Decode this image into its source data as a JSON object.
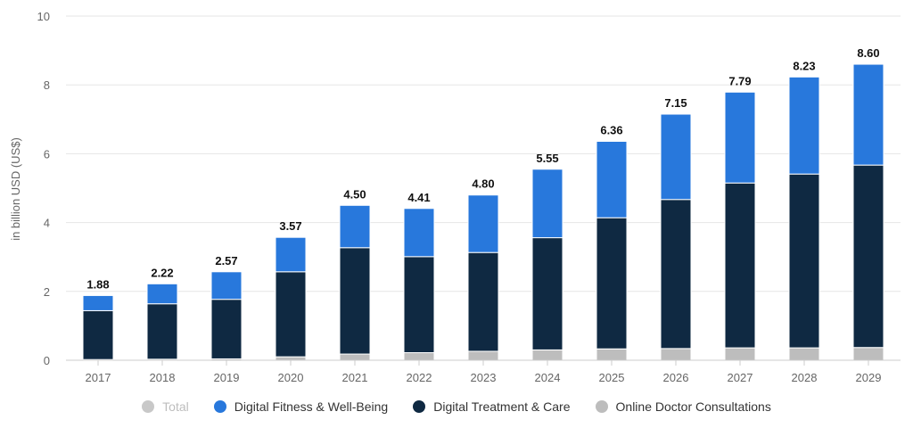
{
  "chart_data": {
    "type": "bar",
    "stacked": true,
    "categories": [
      "2017",
      "2018",
      "2019",
      "2020",
      "2021",
      "2022",
      "2023",
      "2024",
      "2025",
      "2026",
      "2027",
      "2028",
      "2029"
    ],
    "series": [
      {
        "name": "Online Doctor Consultations",
        "color": "#bdbdbd",
        "values": [
          0.02,
          0.03,
          0.04,
          0.1,
          0.18,
          0.22,
          0.26,
          0.3,
          0.33,
          0.34,
          0.36,
          0.36,
          0.37
        ]
      },
      {
        "name": "Digital Treatment & Care",
        "color": "#0f2942",
        "values": [
          1.42,
          1.61,
          1.73,
          2.47,
          3.09,
          2.79,
          2.87,
          3.26,
          3.81,
          4.33,
          4.79,
          5.05,
          5.3
        ]
      },
      {
        "name": "Digital Fitness & Well-Being",
        "color": "#2878dc",
        "values": [
          0.44,
          0.58,
          0.8,
          1.0,
          1.23,
          1.4,
          1.67,
          1.99,
          2.22,
          2.48,
          2.64,
          2.82,
          2.93
        ]
      }
    ],
    "totals": [
      "1.88",
      "2.22",
      "2.57",
      "3.57",
      "4.50",
      "4.41",
      "4.80",
      "5.55",
      "6.36",
      "7.15",
      "7.79",
      "8.23",
      "8.60"
    ],
    "ylabel": "in billion USD (US$)",
    "ylim": [
      0,
      10
    ],
    "yticks": [
      "0",
      "2",
      "4",
      "6",
      "8",
      "10"
    ],
    "grid": true,
    "legend_position": "bottom"
  },
  "legend": [
    {
      "label": "Total",
      "color": "#c8c8c8",
      "inactive": true
    },
    {
      "label": "Digital Fitness & Well-Being",
      "color": "#2878dc",
      "inactive": false
    },
    {
      "label": "Digital Treatment & Care",
      "color": "#0f2942",
      "inactive": false
    },
    {
      "label": "Online Doctor Consultations",
      "color": "#bdbdbd",
      "inactive": false
    }
  ]
}
